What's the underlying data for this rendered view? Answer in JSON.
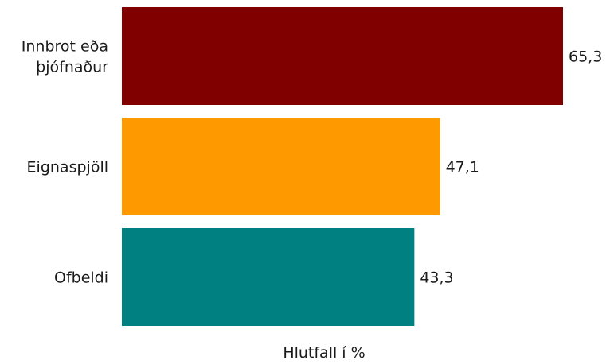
{
  "chart_data": {
    "type": "bar",
    "orientation": "horizontal",
    "categories": [
      "Innbrot eða þjófnaður",
      "Eignaspjöll",
      "Ofbeldi"
    ],
    "category_lines": [
      [
        "Innbrot eða",
        "þjófnaður"
      ],
      [
        "Eignaspjöll"
      ],
      [
        "Ofbeldi"
      ]
    ],
    "values": [
      65.3,
      47.1,
      43.3
    ],
    "value_labels": [
      "65,3",
      "47,1",
      "43,3"
    ],
    "colors": [
      "#800000",
      "#ff9900",
      "#008080"
    ],
    "title": "",
    "xlabel": "Hlutfall í %",
    "ylabel": "",
    "xlim": [
      0,
      70
    ],
    "grid": false,
    "legend": "none"
  }
}
